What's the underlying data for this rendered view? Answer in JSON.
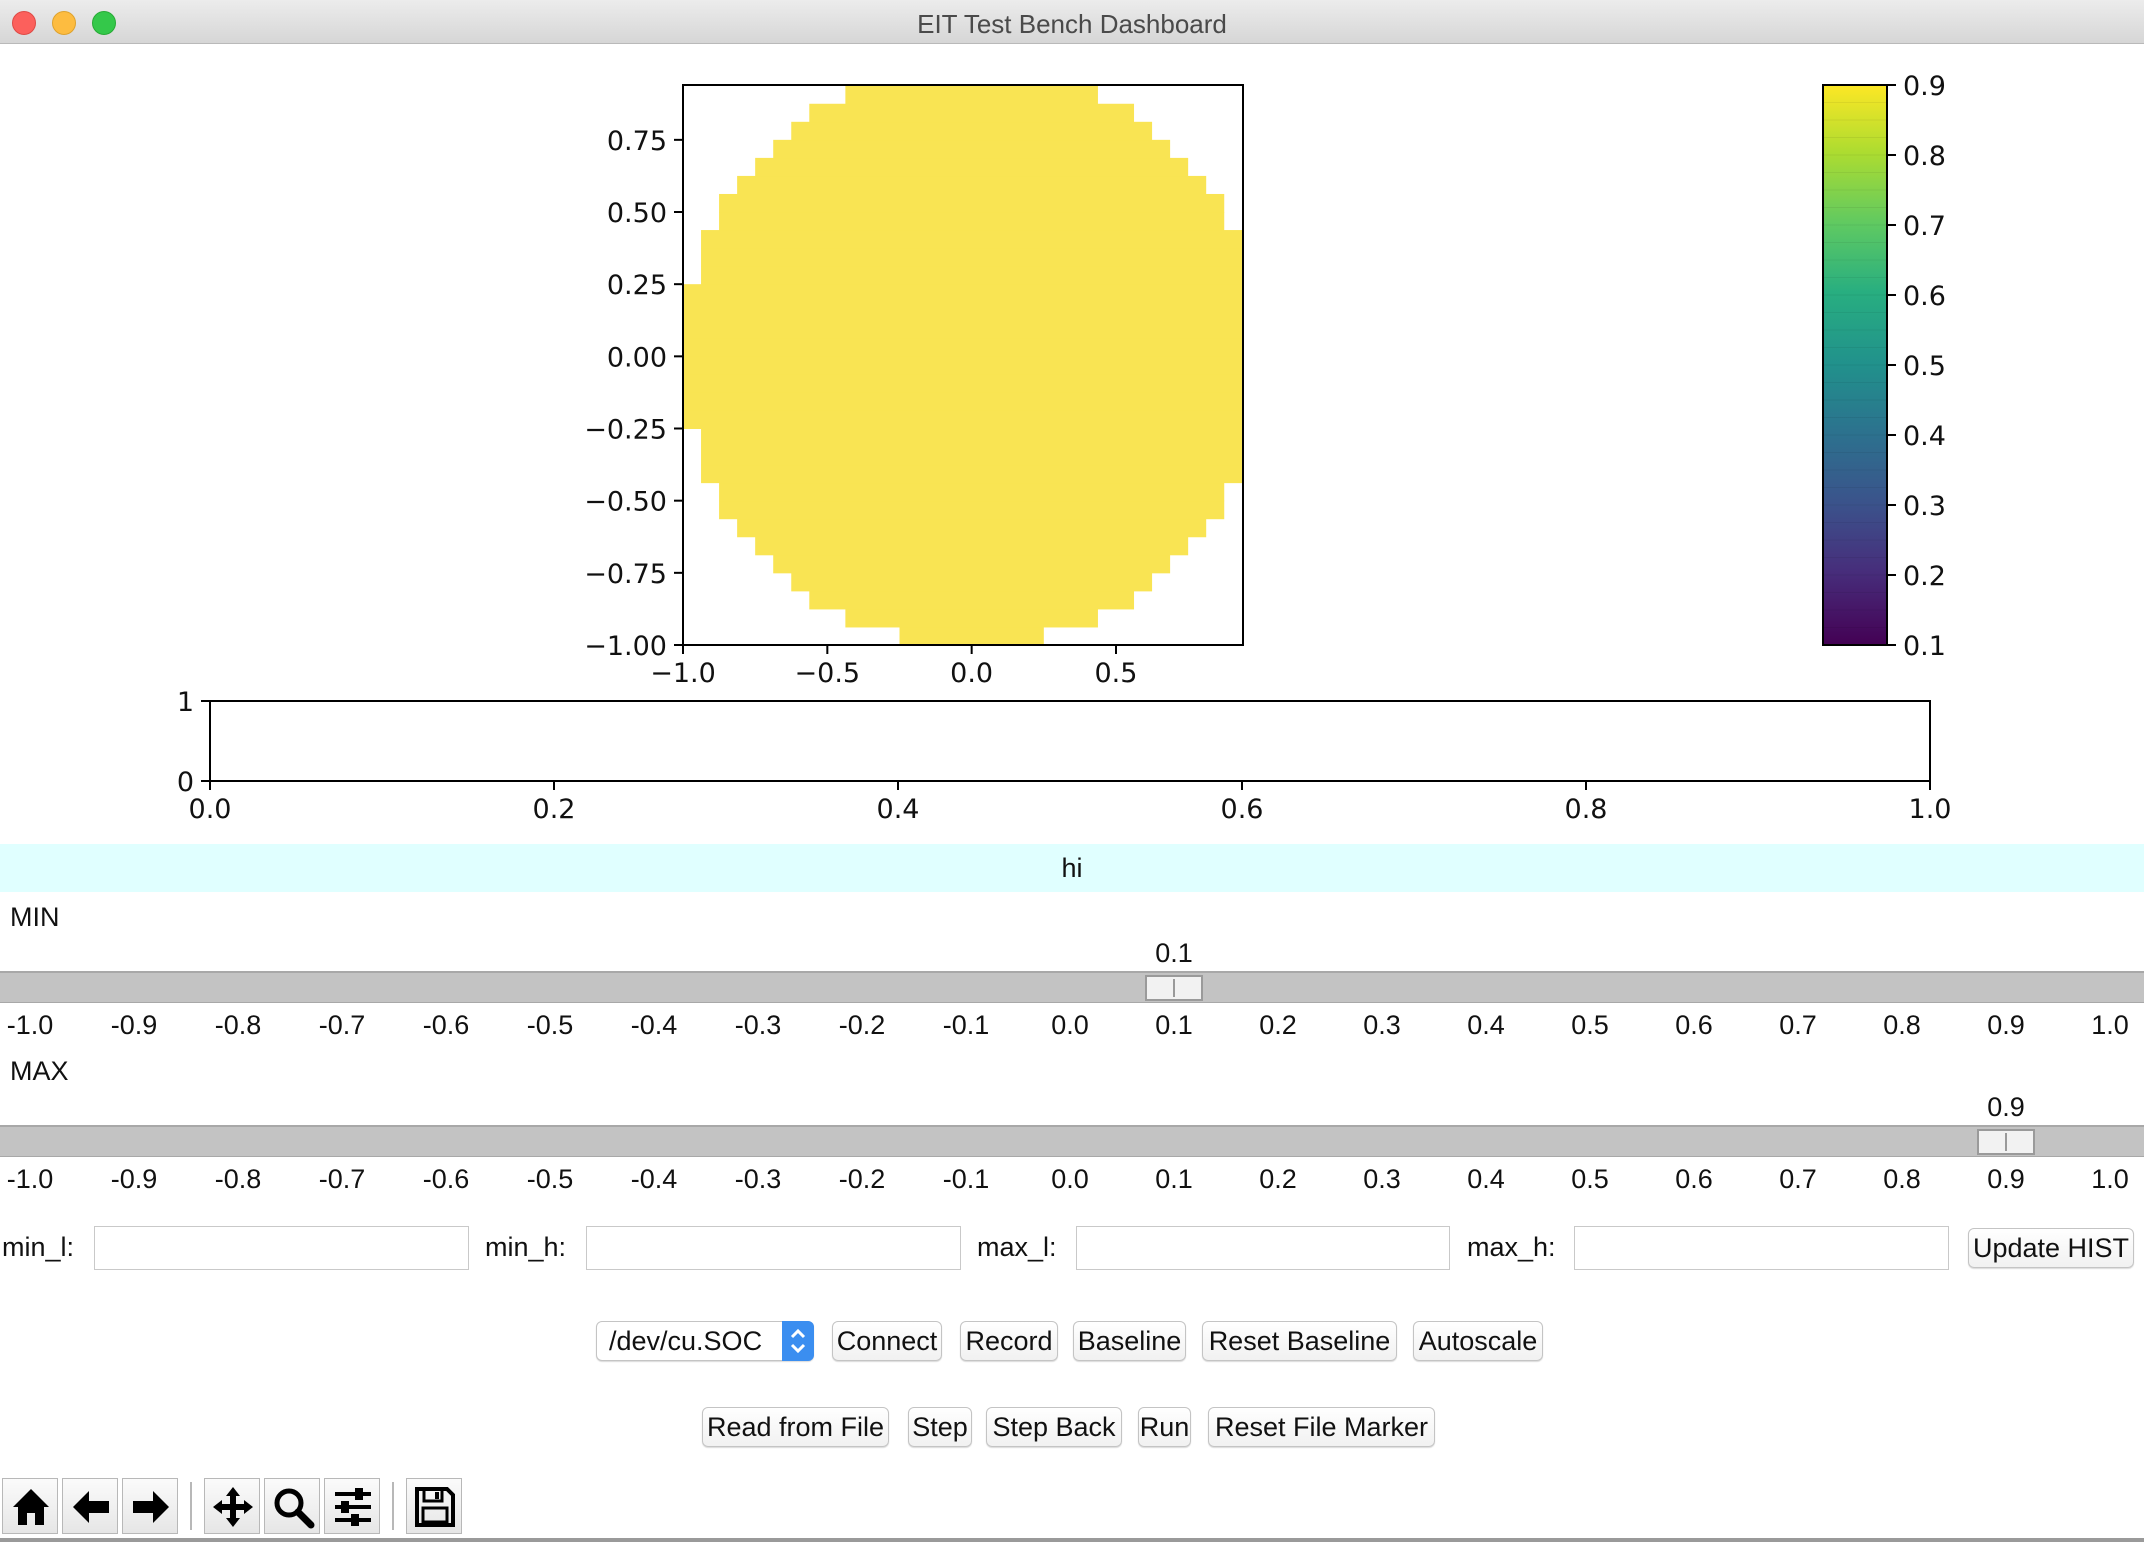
{
  "window": {
    "title": "EIT Test Bench Dashboard"
  },
  "chart_data": [
    {
      "type": "heatmap",
      "description_free": true,
      "x_ticks": [
        "−1.0",
        "−0.5",
        "0.0",
        "0.5"
      ],
      "y_ticks": [
        "0.75",
        "0.50",
        "0.25",
        "0.00",
        "−0.25",
        "−0.50",
        "−0.75",
        "−1.00"
      ],
      "xlim": [
        -1.0,
        0.94
      ],
      "ylim": [
        -1.0,
        0.94
      ],
      "fill_value": 0.9,
      "shape": "disk",
      "colormap": "viridis",
      "fill_color": "#f9e453"
    },
    {
      "type": "colorbar",
      "ticks": [
        "0.9",
        "0.8",
        "0.7",
        "0.6",
        "0.5",
        "0.4",
        "0.3",
        "0.2",
        "0.1"
      ],
      "range": [
        0.1,
        0.9
      ],
      "colormap": "viridis"
    },
    {
      "type": "line",
      "x_ticks": [
        "0.0",
        "0.2",
        "0.4",
        "0.6",
        "0.8",
        "1.0"
      ],
      "y_ticks": [
        "1",
        "0"
      ],
      "xlim": [
        0.0,
        1.0
      ],
      "ylim": [
        0,
        1
      ],
      "series": []
    }
  ],
  "banner": {
    "text": "hi",
    "color": "#e0ffff"
  },
  "sliders": {
    "scale": [
      "-1.0",
      "-0.9",
      "-0.8",
      "-0.7",
      "-0.6",
      "-0.5",
      "-0.4",
      "-0.3",
      "-0.2",
      "-0.1",
      "0.0",
      "0.1",
      "0.2",
      "0.3",
      "0.4",
      "0.5",
      "0.6",
      "0.7",
      "0.8",
      "0.9",
      "1.0"
    ],
    "min": {
      "label": "MIN",
      "value": 0.1,
      "value_text": "0.1"
    },
    "max": {
      "label": "MAX",
      "value": 0.9,
      "value_text": "0.9"
    }
  },
  "fields": {
    "min_l": {
      "label": "min_l:",
      "value": ""
    },
    "min_h": {
      "label": "min_h:",
      "value": ""
    },
    "max_l": {
      "label": "max_l:",
      "value": ""
    },
    "max_h": {
      "label": "max_h:",
      "value": ""
    },
    "update_label": "Update HIST"
  },
  "controls": {
    "port": "/dev/cu.SOC",
    "connect": "Connect",
    "record": "Record",
    "baseline": "Baseline",
    "reset_baseline": "Reset Baseline",
    "autoscale": "Autoscale"
  },
  "file_controls": {
    "read": "Read from File",
    "step": "Step",
    "step_back": "Step Back",
    "run": "Run",
    "reset_marker": "Reset File Marker"
  },
  "toolbar": {
    "icons": [
      "home-icon",
      "back-arrow-icon",
      "forward-arrow-icon",
      "pan-icon",
      "zoom-icon",
      "configure-subplots-icon",
      "save-icon"
    ]
  }
}
